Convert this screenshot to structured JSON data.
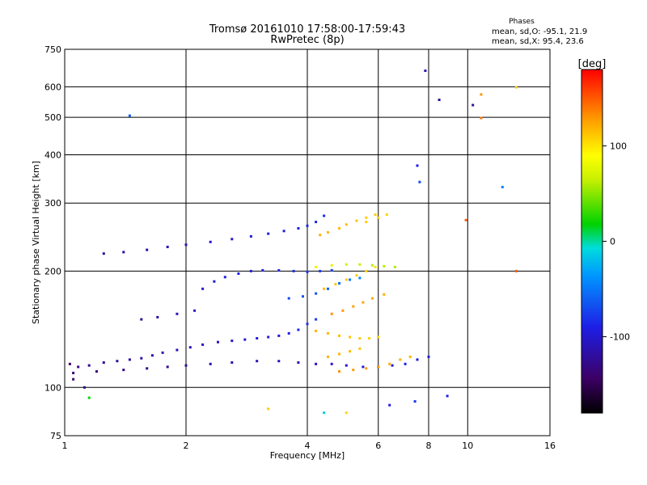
{
  "chart_data": {
    "type": "scatter",
    "title": "Tromsø 20161010 17:58:00-17:59:43",
    "subtitle": "RwPretec (8p)",
    "xlabel": "Frequency [MHz]",
    "ylabel": "Stationary phase Virtual Height [km]",
    "x_scale": "log",
    "y_scale": "log",
    "xlim": [
      1,
      16
    ],
    "ylim": [
      75,
      750
    ],
    "x_ticks": [
      1,
      2,
      4,
      6,
      8,
      10,
      16
    ],
    "y_ticks": [
      75,
      100,
      200,
      300,
      400,
      500,
      600,
      750
    ],
    "grid": true,
    "annotation": {
      "heading": "Phases",
      "line_o": "mean, sd,O: -95.1, 21.9",
      "line_x": "mean, sd,X:  95.4, 23.6"
    },
    "colorbar": {
      "label": "[deg]",
      "range": [
        -180,
        180
      ],
      "ticks": [
        100,
        0,
        -100
      ]
    },
    "series": [
      {
        "points": [
          [
            1.03,
            115,
            -135
          ],
          [
            1.08,
            113,
            -130
          ],
          [
            1.15,
            114,
            -128
          ],
          [
            1.25,
            116,
            -125
          ],
          [
            1.35,
            117,
            -122
          ],
          [
            1.45,
            118,
            -120
          ],
          [
            1.55,
            119,
            -118
          ],
          [
            1.65,
            121,
            -115
          ],
          [
            1.75,
            123,
            -112
          ],
          [
            1.9,
            125,
            -110
          ],
          [
            2.05,
            127,
            -108
          ],
          [
            2.2,
            129,
            -106
          ],
          [
            2.4,
            131,
            -104
          ],
          [
            2.6,
            132,
            -102
          ],
          [
            2.8,
            133,
            -100
          ],
          [
            3.0,
            134,
            -98
          ],
          [
            3.2,
            135,
            -96
          ],
          [
            3.4,
            136,
            -94
          ],
          [
            3.6,
            138,
            -90
          ],
          [
            3.8,
            141,
            -85
          ],
          [
            4.0,
            146,
            -80
          ],
          [
            4.2,
            150,
            -75
          ],
          [
            1.05,
            109,
            -138
          ],
          [
            1.2,
            110,
            -134
          ],
          [
            1.4,
            111,
            -130
          ],
          [
            1.6,
            112,
            -127
          ],
          [
            1.8,
            113,
            -124
          ],
          [
            2.0,
            114,
            -122
          ],
          [
            2.3,
            115,
            -118
          ],
          [
            2.6,
            116,
            -115
          ],
          [
            3.0,
            117,
            -112
          ],
          [
            3.4,
            117,
            -110
          ],
          [
            3.8,
            116,
            -108
          ],
          [
            4.2,
            115,
            -105
          ],
          [
            4.6,
            115,
            -102
          ],
          [
            5.0,
            114,
            -100
          ],
          [
            5.5,
            113,
            -98
          ],
          [
            6.0,
            113,
            -96
          ],
          [
            6.5,
            114,
            -94
          ],
          [
            7.0,
            115,
            -92
          ],
          [
            7.5,
            118,
            -90
          ],
          [
            8.0,
            120,
            -90
          ],
          [
            1.25,
            222,
            -120
          ],
          [
            1.4,
            224,
            -118
          ],
          [
            1.6,
            227,
            -116
          ],
          [
            1.8,
            231,
            -114
          ],
          [
            2.0,
            234,
            -110
          ],
          [
            2.3,
            238,
            -106
          ],
          [
            2.6,
            242,
            -102
          ],
          [
            2.9,
            246,
            -98
          ],
          [
            3.2,
            250,
            -94
          ],
          [
            3.5,
            254,
            -92
          ],
          [
            3.8,
            258,
            -88
          ],
          [
            4.0,
            262,
            -85
          ],
          [
            4.2,
            268,
            -85
          ],
          [
            4.4,
            278,
            -82
          ],
          [
            2.2,
            180,
            -100
          ],
          [
            2.35,
            188,
            -98
          ],
          [
            2.5,
            193,
            -95
          ],
          [
            2.7,
            197,
            -92
          ],
          [
            2.9,
            200,
            -90
          ],
          [
            3.1,
            201,
            -88
          ],
          [
            3.4,
            201,
            -85
          ],
          [
            3.7,
            200,
            -82
          ],
          [
            4.0,
            199,
            -80
          ],
          [
            4.3,
            200,
            -78
          ],
          [
            4.6,
            201,
            -75
          ],
          [
            3.6,
            170,
            -72
          ],
          [
            3.9,
            172,
            -68
          ],
          [
            4.2,
            175,
            -65
          ],
          [
            4.5,
            180,
            -60
          ],
          [
            4.8,
            186,
            -55
          ],
          [
            5.1,
            190,
            -50
          ],
          [
            5.4,
            192,
            -45
          ],
          [
            1.55,
            150,
            -120
          ],
          [
            1.7,
            152,
            -115
          ],
          [
            1.9,
            155,
            -110
          ],
          [
            2.1,
            158,
            -105
          ],
          [
            4.3,
            248,
            120
          ],
          [
            4.5,
            252,
            118
          ],
          [
            4.8,
            258,
            116
          ],
          [
            5.0,
            264,
            115
          ],
          [
            5.3,
            270,
            112
          ],
          [
            5.6,
            275,
            110
          ],
          [
            5.9,
            280,
            108
          ],
          [
            4.2,
            140,
            120
          ],
          [
            4.5,
            138,
            118
          ],
          [
            4.8,
            136,
            115
          ],
          [
            5.1,
            135,
            112
          ],
          [
            5.4,
            134,
            110
          ],
          [
            5.7,
            134,
            108
          ],
          [
            6.0,
            135,
            106
          ],
          [
            4.5,
            120,
            120
          ],
          [
            4.8,
            122,
            118
          ],
          [
            5.1,
            124,
            115
          ],
          [
            5.4,
            126,
            112
          ],
          [
            4.4,
            180,
            115
          ],
          [
            4.7,
            185,
            112
          ],
          [
            5.0,
            190,
            110
          ],
          [
            5.3,
            195,
            108
          ],
          [
            5.6,
            200,
            105
          ],
          [
            5.9,
            205,
            102
          ],
          [
            4.6,
            155,
            130
          ],
          [
            4.9,
            158,
            128
          ],
          [
            5.2,
            162,
            126
          ],
          [
            5.5,
            166,
            124
          ],
          [
            5.8,
            170,
            122
          ],
          [
            6.2,
            174,
            120
          ],
          [
            4.2,
            205,
            80
          ],
          [
            4.6,
            207,
            75
          ],
          [
            5.0,
            208,
            70
          ],
          [
            5.4,
            208,
            65
          ],
          [
            5.8,
            207,
            62
          ],
          [
            6.2,
            206,
            60
          ],
          [
            6.6,
            205,
            58
          ],
          [
            4.8,
            110,
            130
          ],
          [
            5.2,
            111,
            128
          ],
          [
            5.6,
            112,
            126
          ],
          [
            6.0,
            113,
            124
          ],
          [
            6.4,
            115,
            122
          ],
          [
            6.8,
            118,
            120
          ],
          [
            7.2,
            120,
            118
          ],
          [
            5.6,
            268,
            110
          ],
          [
            6.0,
            275,
            108
          ],
          [
            6.3,
            280,
            106
          ],
          [
            1.45,
            505,
            -60
          ],
          [
            7.85,
            660,
            -110
          ],
          [
            8.5,
            555,
            -120
          ],
          [
            10.3,
            538,
            -125
          ],
          [
            10.8,
            573,
            130
          ],
          [
            10.8,
            498,
            140
          ],
          [
            12.2,
            330,
            -45
          ],
          [
            9.9,
            271,
            150
          ],
          [
            13.2,
            598,
            110
          ],
          [
            13.2,
            200,
            150
          ],
          [
            7.5,
            375,
            -90
          ],
          [
            7.6,
            340,
            -70
          ],
          [
            3.2,
            88,
            110
          ],
          [
            4.4,
            86,
            -10
          ],
          [
            5.0,
            86,
            105
          ],
          [
            6.4,
            90,
            -95
          ],
          [
            7.4,
            92,
            -80
          ],
          [
            8.9,
            95,
            -90
          ],
          [
            1.05,
            105,
            -140
          ],
          [
            1.12,
            100,
            -130
          ],
          [
            1.15,
            94,
            20
          ]
        ]
      }
    ]
  }
}
